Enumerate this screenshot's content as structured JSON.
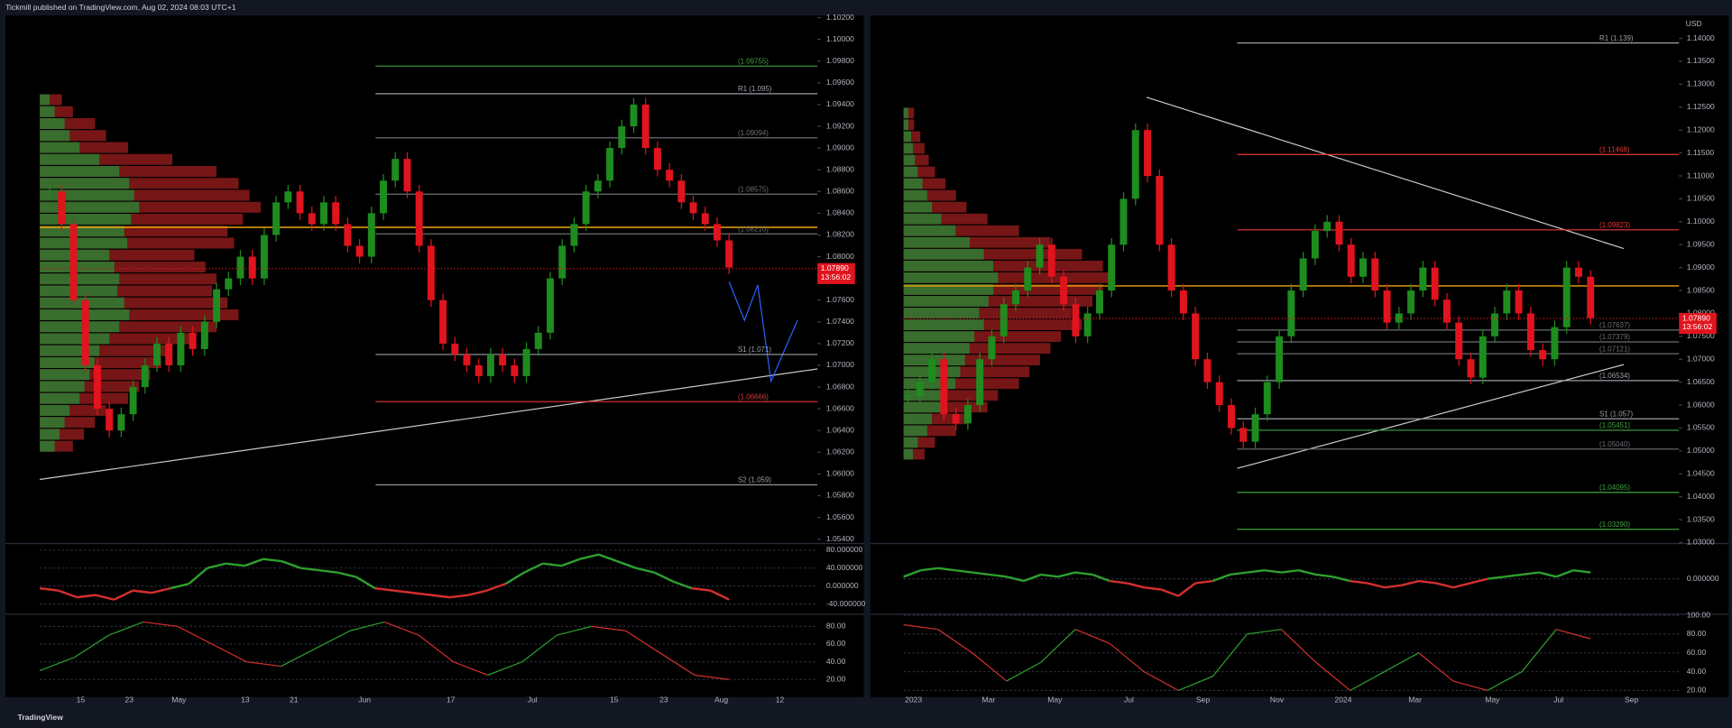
{
  "header": {
    "title": "Tickmill published on TradingView.com, Aug 02, 2024 08:03 UTC+1"
  },
  "footer": {
    "brand": "TradingView"
  },
  "panels": [
    {
      "type": "candlestick",
      "currency": null,
      "ylim": [
        1.0536,
        1.1022
      ],
      "yticks": [
        {
          "value": 1.102,
          "label": "1.10200"
        },
        {
          "value": 1.1,
          "label": "1.10000"
        },
        {
          "value": 1.098,
          "label": "1.09800"
        },
        {
          "value": 1.096,
          "label": "1.09600"
        },
        {
          "value": 1.094,
          "label": "1.09400"
        },
        {
          "value": 1.092,
          "label": "1.09200"
        },
        {
          "value": 1.09,
          "label": "1.09000"
        },
        {
          "value": 1.088,
          "label": "1.08800"
        },
        {
          "value": 1.086,
          "label": "1.08600"
        },
        {
          "value": 1.084,
          "label": "1.08400"
        },
        {
          "value": 1.082,
          "label": "1.08200"
        },
        {
          "value": 1.08,
          "label": "1.08000"
        },
        {
          "value": 1.078,
          "label": "1.07800"
        },
        {
          "value": 1.076,
          "label": "1.07600"
        },
        {
          "value": 1.074,
          "label": "1.07400"
        },
        {
          "value": 1.072,
          "label": "1.07200"
        },
        {
          "value": 1.07,
          "label": "1.07000"
        },
        {
          "value": 1.068,
          "label": "1.06800"
        },
        {
          "value": 1.066,
          "label": "1.06600"
        },
        {
          "value": 1.064,
          "label": "1.06400"
        },
        {
          "value": 1.062,
          "label": "1.06200"
        },
        {
          "value": 1.06,
          "label": "1.06000"
        },
        {
          "value": 1.058,
          "label": "1.05800"
        },
        {
          "value": 1.056,
          "label": "1.05600"
        },
        {
          "value": 1.054,
          "label": "1.05400"
        }
      ],
      "time_labels": [
        "15",
        "23",
        "May",
        "13",
        "21",
        "Jun",
        "17",
        "Jul",
        "15",
        "23",
        "Aug",
        "12"
      ],
      "closes": [
        1.086,
        1.083,
        1.076,
        1.07,
        1.066,
        1.064,
        1.0655,
        1.068,
        1.07,
        1.072,
        1.07,
        1.073,
        1.0715,
        1.074,
        1.077,
        1.078,
        1.08,
        1.078,
        1.082,
        1.085,
        1.086,
        1.084,
        1.083,
        1.085,
        1.083,
        1.081,
        1.08,
        1.084,
        1.087,
        1.089,
        1.086,
        1.081,
        1.076,
        1.072,
        1.071,
        1.07,
        1.069,
        1.071,
        1.07,
        1.069,
        1.0715,
        1.073,
        1.078,
        1.081,
        1.083,
        1.086,
        1.087,
        1.09,
        1.092,
        1.094,
        1.09,
        1.088,
        1.087,
        1.085,
        1.084,
        1.083,
        1.0815,
        1.079
      ],
      "poc": 1.0827,
      "profile_range": [
        1.062,
        1.095
      ],
      "profile": [
        10,
        15,
        25,
        30,
        40,
        60,
        80,
        90,
        95,
        100,
        92,
        85,
        88,
        70,
        75,
        80,
        78,
        85,
        90,
        80,
        70,
        60,
        55,
        50,
        45,
        40,
        30,
        25,
        20,
        15
      ],
      "levels": [
        {
          "label": "(1.09755)",
          "value": 1.09755,
          "color": "#3fa63f"
        },
        {
          "label": "R1 (1.095)",
          "value": 1.095,
          "color": "#9aa0a6"
        },
        {
          "label": "(1.09094)",
          "value": 1.09094,
          "color": "#6b6f75"
        },
        {
          "label": "(1.08575)",
          "value": 1.08575,
          "color": "#6b6f75"
        },
        {
          "label": "(1.08210)",
          "value": 1.0821,
          "color": "#6b6f75"
        },
        {
          "label": "S1 (1.071)",
          "value": 1.071,
          "color": "#9aa0a6"
        },
        {
          "label": "(1.06666)",
          "value": 1.06666,
          "color": "#e53935"
        },
        {
          "label": "S2 (1.059)",
          "value": 1.059,
          "color": "#9aa0a6"
        }
      ],
      "last": {
        "price": 1.0789,
        "price_label": "1.07890",
        "countdown": "13:56:02"
      },
      "osc1": {
        "ylim": [
          -60,
          92
        ],
        "yticks": [
          {
            "value": 80,
            "label": "80.000000"
          },
          {
            "value": 40,
            "label": "40.000000"
          },
          {
            "value": 0,
            "label": "0.000000"
          },
          {
            "value": -40,
            "label": "-40.000000"
          }
        ],
        "values": [
          -5,
          -10,
          -25,
          -20,
          -30,
          -10,
          -15,
          -5,
          5,
          40,
          50,
          45,
          60,
          55,
          40,
          35,
          30,
          20,
          -5,
          -10,
          -15,
          -20,
          -25,
          -20,
          -10,
          5,
          30,
          50,
          45,
          60,
          70,
          55,
          40,
          30,
          10,
          -5,
          -10,
          -30
        ]
      },
      "osc2": {
        "ylim": [
          4,
          92.5
        ],
        "yticks": [
          {
            "value": 80,
            "label": "80.00"
          },
          {
            "value": 60,
            "label": "60.00"
          },
          {
            "value": 40,
            "label": "40.00"
          },
          {
            "value": 20,
            "label": "20.00"
          }
        ],
        "values": [
          30,
          45,
          70,
          85,
          80,
          60,
          40,
          35,
          55,
          75,
          85,
          70,
          40,
          25,
          40,
          70,
          80,
          75,
          50,
          25,
          20
        ]
      }
    },
    {
      "type": "candlestick",
      "currency": "USD",
      "ylim": [
        1.0298,
        1.145
      ],
      "yticks": [
        {
          "value": 1.14,
          "label": "1.14000"
        },
        {
          "value": 1.135,
          "label": "1.13500"
        },
        {
          "value": 1.13,
          "label": "1.13000"
        },
        {
          "value": 1.125,
          "label": "1.12500"
        },
        {
          "value": 1.12,
          "label": "1.12000"
        },
        {
          "value": 1.115,
          "label": "1.11500"
        },
        {
          "value": 1.11,
          "label": "1.11000"
        },
        {
          "value": 1.105,
          "label": "1.10500"
        },
        {
          "value": 1.1,
          "label": "1.10000"
        },
        {
          "value": 1.095,
          "label": "1.09500"
        },
        {
          "value": 1.09,
          "label": "1.09000"
        },
        {
          "value": 1.085,
          "label": "1.08500"
        },
        {
          "value": 1.08,
          "label": "1.08000"
        },
        {
          "value": 1.075,
          "label": "1.07500"
        },
        {
          "value": 1.07,
          "label": "1.07000"
        },
        {
          "value": 1.065,
          "label": "1.06500"
        },
        {
          "value": 1.06,
          "label": "1.06000"
        },
        {
          "value": 1.055,
          "label": "1.05500"
        },
        {
          "value": 1.05,
          "label": "1.05000"
        },
        {
          "value": 1.045,
          "label": "1.04500"
        },
        {
          "value": 1.04,
          "label": "1.04000"
        },
        {
          "value": 1.035,
          "label": "1.03500"
        },
        {
          "value": 1.03,
          "label": "1.03000"
        }
      ],
      "time_labels": [
        "2023",
        "Mar",
        "May",
        "Jul",
        "Sep",
        "Nov",
        "2024",
        "Mar",
        "May",
        "Jul",
        "Sep"
      ],
      "closes": [
        1.062,
        1.065,
        1.07,
        1.058,
        1.056,
        1.06,
        1.07,
        1.075,
        1.082,
        1.085,
        1.09,
        1.095,
        1.088,
        1.082,
        1.075,
        1.08,
        1.085,
        1.095,
        1.105,
        1.12,
        1.11,
        1.095,
        1.085,
        1.08,
        1.07,
        1.065,
        1.06,
        1.055,
        1.052,
        1.058,
        1.065,
        1.075,
        1.085,
        1.092,
        1.098,
        1.1,
        1.095,
        1.088,
        1.092,
        1.085,
        1.078,
        1.08,
        1.085,
        1.09,
        1.083,
        1.078,
        1.07,
        1.066,
        1.075,
        1.08,
        1.085,
        1.08,
        1.072,
        1.07,
        1.077,
        1.09,
        1.088,
        1.079
      ],
      "poc": 1.086,
      "profile_range": [
        1.048,
        1.125
      ],
      "profile": [
        5,
        5,
        8,
        10,
        12,
        15,
        20,
        25,
        30,
        40,
        55,
        70,
        85,
        95,
        100,
        95,
        90,
        80,
        85,
        75,
        70,
        65,
        60,
        55,
        45,
        40,
        30,
        25,
        15,
        10
      ],
      "levels": [
        {
          "label": "R1 (1.139)",
          "value": 1.139,
          "color": "#9aa0a6"
        },
        {
          "label": "(1.11468)",
          "value": 1.11468,
          "color": "#e53935"
        },
        {
          "label": "(1.09823)",
          "value": 1.09823,
          "color": "#e53935"
        },
        {
          "label": "(1.07637)",
          "value": 1.07637,
          "color": "#6b6f75"
        },
        {
          "label": "(1.07379)",
          "value": 1.07379,
          "color": "#6b6f75"
        },
        {
          "label": "(1.07121)",
          "value": 1.07121,
          "color": "#6b6f75"
        },
        {
          "label": "(1.06534)",
          "value": 1.06534,
          "color": "#9aa0a6"
        },
        {
          "label": "S1 (1.057)",
          "value": 1.057,
          "color": "#9aa0a6"
        },
        {
          "label": "(1.05451)",
          "value": 1.05451,
          "color": "#3fa63f"
        },
        {
          "label": "(1.05040)",
          "value": 1.0504,
          "color": "#6b6f75"
        },
        {
          "label": "(1.04095)",
          "value": 1.04095,
          "color": "#3fa63f"
        },
        {
          "label": "(1.03290)",
          "value": 1.0329,
          "color": "#3fa63f"
        }
      ],
      "last": {
        "price": 1.0789,
        "price_label": "1.07890",
        "countdown": "13:56:02"
      },
      "osc1": {
        "ylim": [
          -80,
          80
        ],
        "yticks": [
          {
            "value": 0,
            "label": "0.000000"
          }
        ],
        "values": [
          5,
          20,
          25,
          20,
          15,
          10,
          5,
          -5,
          10,
          5,
          15,
          10,
          -5,
          -10,
          -20,
          -25,
          -40,
          -10,
          -5,
          10,
          15,
          20,
          15,
          20,
          10,
          5,
          -5,
          -10,
          -20,
          -15,
          -5,
          -10,
          -20,
          -10,
          0,
          5,
          10,
          15,
          5,
          20,
          15
        ]
      },
      "osc2": {
        "ylim": [
          16.5,
          100
        ],
        "yticks": [
          {
            "value": 100,
            "label": "100.00"
          },
          {
            "value": 80,
            "label": "80.00"
          },
          {
            "value": 60,
            "label": "60.00"
          },
          {
            "value": 40,
            "label": "40.00"
          },
          {
            "value": 20,
            "label": "20.00"
          }
        ],
        "values": [
          90,
          85,
          60,
          30,
          50,
          85,
          70,
          40,
          20,
          35,
          80,
          85,
          50,
          20,
          40,
          60,
          30,
          20,
          40,
          85,
          75
        ]
      }
    }
  ]
}
